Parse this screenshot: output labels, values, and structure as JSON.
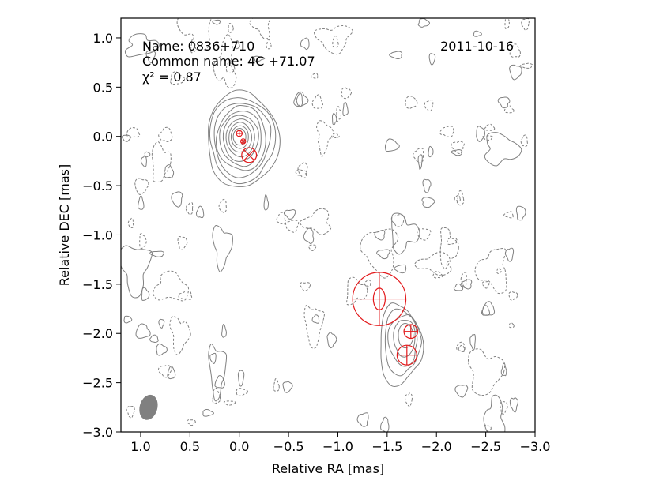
{
  "chart_data": {
    "type": "contour",
    "xlabel": "Relative RA [mas]",
    "ylabel": "Relative DEC [mas]",
    "xlim": [
      1.2,
      -3.0
    ],
    "ylim": [
      -3.0,
      1.2
    ],
    "xticks": [
      1.0,
      0.5,
      0.0,
      -0.5,
      -1.0,
      -1.5,
      -2.0,
      -2.5,
      -3.0
    ],
    "xtick_labels": [
      "1.0",
      "0.5",
      "0.0",
      "−0.5",
      "−1.0",
      "−1.5",
      "−2.0",
      "−2.5",
      "−3.0"
    ],
    "yticks": [
      1.0,
      0.5,
      0.0,
      -0.5,
      -1.0,
      -1.5,
      -2.0,
      -2.5,
      -3.0
    ],
    "ytick_labels": [
      "1.0",
      "0.5",
      "0.0",
      "−0.5",
      "−1.0",
      "−1.5",
      "−2.0",
      "−2.5",
      "−3.0"
    ],
    "annotations": {
      "name": "Name: 0836+710",
      "common_name": "Common name: 4C +71.07",
      "chi2": "χ² = 0.87",
      "date": "2011-10-16"
    },
    "colors": {
      "contour": "#808080",
      "component": "#e31a1c",
      "beam": "#808080"
    },
    "core": {
      "x": 0.0,
      "y": 0.0,
      "levels": 10
    },
    "jet_knot": {
      "x": -1.7,
      "y": -2.0
    },
    "components": [
      {
        "x": 0.0,
        "y": 0.03,
        "r": 0.03
      },
      {
        "x": -0.04,
        "y": -0.05,
        "r": 0.025
      },
      {
        "x": -0.1,
        "y": -0.19,
        "r": 0.075
      },
      {
        "x": -1.42,
        "y": -1.65,
        "r": 0.27
      },
      {
        "x": -1.74,
        "y": -1.98,
        "r": 0.07
      },
      {
        "x": -1.7,
        "y": -2.22,
        "r": 0.1
      }
    ],
    "beam": {
      "x": 0.92,
      "y": -2.75,
      "major": 0.13,
      "minor": 0.09,
      "pa_deg": 15
    }
  }
}
